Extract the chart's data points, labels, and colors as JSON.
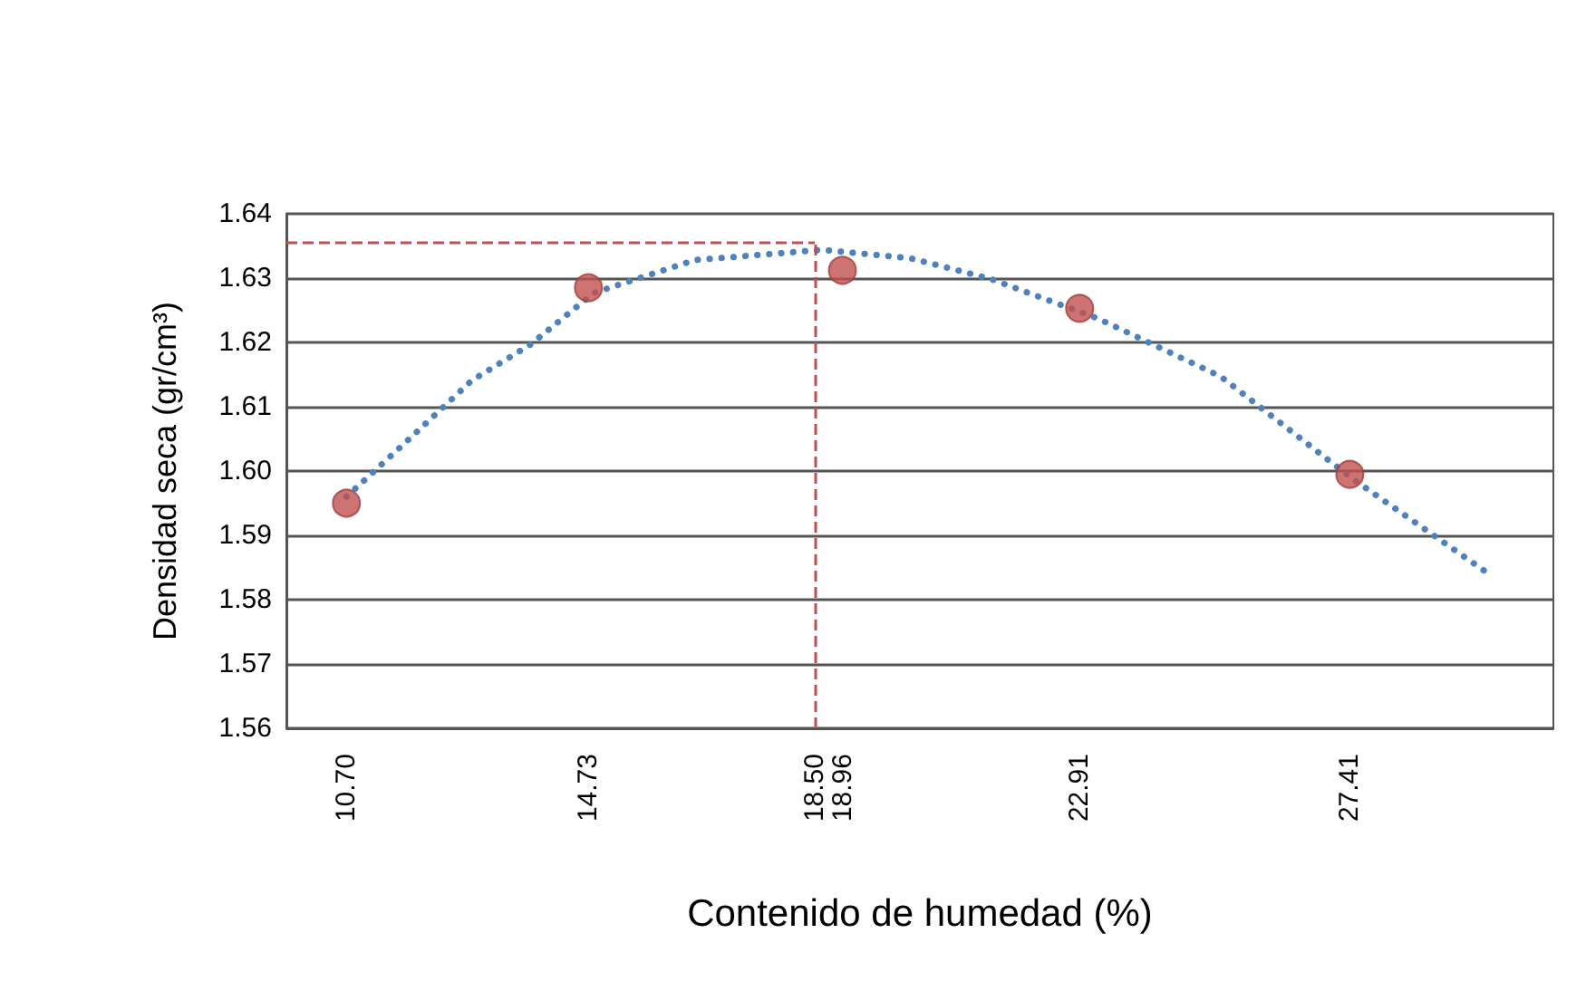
{
  "chart_data": {
    "type": "scatter",
    "xlabel": "Contenido de humedad (%)",
    "ylabel": "Densidad seca (gr/cm³)",
    "series": [
      {
        "color": "#c0504d",
        "marker": "circle",
        "x": [
          10.7,
          14.73,
          18.96,
          22.91,
          27.41
        ],
        "values": [
          1.595,
          1.6285,
          1.6312,
          1.6253,
          1.5995
        ]
      },
      {
        "type": "line",
        "color": "#4f81bd",
        "marker": "none",
        "line_style": "dotted",
        "x": [
          10.7,
          11.69,
          12.79,
          13.77,
          14.82,
          16.5,
          18.63,
          20.09,
          21.42,
          23.22,
          25.26,
          27.44,
          29.68
        ],
        "values": [
          1.596,
          1.6045,
          1.6141,
          1.6197,
          1.6277,
          1.6328,
          1.6344,
          1.6331,
          1.6299,
          1.6237,
          1.6147,
          1.5989,
          1.5843
        ]
      }
    ],
    "xlim": [
      9.7,
      30.8
    ],
    "xticks": [
      {
        "value": 10.7,
        "label": "10.70"
      },
      {
        "value": 14.73,
        "label": "14.73"
      },
      {
        "value": 18.5,
        "label": "18.50"
      },
      {
        "value": 18.96,
        "label": "18.96"
      },
      {
        "value": 22.91,
        "label": "22.91"
      },
      {
        "value": 27.41,
        "label": "27.41"
      }
    ],
    "ylim": [
      1.56,
      1.64
    ],
    "yticks": [
      {
        "value": 1.56,
        "label": "1.56"
      },
      {
        "value": 1.57,
        "label": "1.57"
      },
      {
        "value": 1.58,
        "label": "1.58"
      },
      {
        "value": 1.59,
        "label": "1.59"
      },
      {
        "value": 1.6,
        "label": "1.60"
      },
      {
        "value": 1.61,
        "label": "1.61"
      },
      {
        "value": 1.62,
        "label": "1.62"
      },
      {
        "value": 1.63,
        "label": "1.63"
      },
      {
        "value": 1.64,
        "label": "1.64"
      }
    ],
    "grid": "y",
    "ref_lines": [
      {
        "axis": "x",
        "value": 18.5,
        "color": "#c0504d",
        "line_style": "dashed"
      },
      {
        "axis": "y",
        "value": 1.6355,
        "color": "#c0504d",
        "line_style": "dashed"
      }
    ]
  }
}
